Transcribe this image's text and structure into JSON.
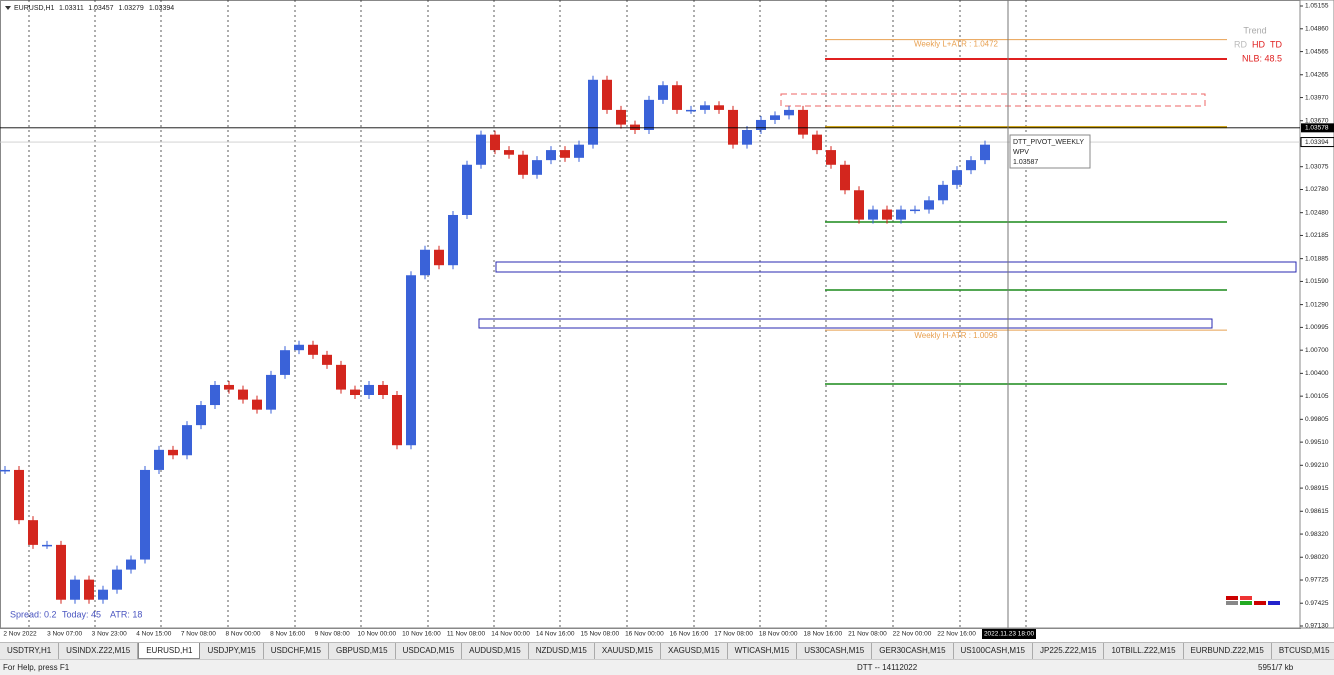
{
  "header": {
    "symbol": "EURUSD,H1",
    "ohlc": [
      1.03311,
      1.03457,
      1.03279,
      1.03394
    ]
  },
  "chart_data": {
    "type": "candlestick",
    "closes": [
      0.9915,
      0.985,
      0.9818,
      0.9818,
      0.9747,
      0.9773,
      0.9747,
      0.976,
      0.9786,
      0.9799,
      0.9915,
      0.9941,
      0.9934,
      0.9973,
      0.9999,
      1.0025,
      1.0019,
      1.0006,
      0.9993,
      1.0038,
      1.007,
      1.0077,
      1.0064,
      1.0051,
      1.0019,
      1.0012,
      1.0025,
      1.0012,
      0.9947,
      1.0167,
      1.02,
      1.018,
      1.0245,
      1.031,
      1.0349,
      1.0329,
      1.0323,
      1.0297,
      1.0316,
      1.0329,
      1.0319,
      1.0336,
      1.042,
      1.0381,
      1.0362,
      1.0355,
      1.0394,
      1.0413,
      1.0381,
      1.0381,
      1.0387,
      1.0381,
      1.0336,
      1.0355,
      1.0368,
      1.0374,
      1.0381,
      1.0349,
      1.0329,
      1.031,
      1.0277,
      1.0239,
      1.0252,
      1.0239,
      1.0252,
      1.0252,
      1.0264,
      1.0284,
      1.0303,
      1.0316,
      1.0336
    ],
    "up_color": "#3a62d8",
    "down_color": "#d3261e",
    "ylim": [
      0.9713,
      1.05155
    ],
    "yticks": [
      1.05155,
      {
        "value": 1.0486,
        "label": "1.04860"
      },
      1.04565,
      1.04265,
      {
        "value": 1.0397,
        "label": "1.03970"
      },
      {
        "value": 1.0367,
        "label": "1.03670"
      },
      1.03075,
      {
        "value": 1.0278,
        "label": "1.02780"
      },
      {
        "value": 1.0248,
        "label": "1.02480"
      },
      1.02185,
      1.01885,
      {
        "value": 1.0159,
        "label": "1.01590"
      },
      {
        "value": 1.0129,
        "label": "1.01290"
      },
      1.00995,
      {
        "value": 1.007,
        "label": "1.00700"
      },
      {
        "value": 1.004,
        "label": "1.00400"
      },
      1.00105,
      0.99805,
      {
        "value": 0.9951,
        "label": "0.99510"
      },
      {
        "value": 0.9921,
        "label": "0.99210"
      },
      0.98915,
      0.98615,
      {
        "value": 0.9832,
        "label": "0.98320"
      },
      {
        "value": 0.9802,
        "label": "0.98020"
      },
      0.97725,
      0.97425,
      {
        "value": 0.9713,
        "label": "0.97130"
      }
    ],
    "categories": [
      "2 Nov 2022",
      "3 Nov 07:00",
      "3 Nov 23:00",
      "4 Nov 15:00",
      "7 Nov 08:00",
      "8 Nov 00:00",
      "8 Nov 16:00",
      "9 Nov 08:00",
      "10 Nov 00:00",
      "10 Nov 16:00",
      "11 Nov 08:00",
      "14 Nov 00:00",
      "14 Nov 16:00",
      "15 Nov 08:00",
      "16 Nov 00:00",
      "16 Nov 16:00",
      "17 Nov 08:00",
      "18 Nov 00:00",
      "18 Nov 16:00",
      "21 Nov 08:00",
      "22 Nov 00:00",
      "22 Nov 16:00"
    ],
    "levels": [
      {
        "label": "Weekly L+ATR : 1.0472",
        "value": 1.0472,
        "color": "#e8a050"
      },
      {
        "label": "Weekly H-ATR : 1.0096",
        "value": 1.0096,
        "color": "#e8a050"
      }
    ],
    "pivot": {
      "name": "DTT_PIVOT_WEEKLY",
      "short": "WPV",
      "value": 1.03587,
      "color": "#c89a00"
    },
    "crosshair": {
      "price": 1.03578,
      "time": "2022.11.23 18:00"
    },
    "bid": 1.03394
  },
  "trend": {
    "title": "Trend",
    "items": [
      "RD",
      "HD",
      "TD"
    ],
    "nlb": "NLB: 48.5"
  },
  "info": [
    "Spread: 0.2",
    "Today: 45",
    "ATR: 18"
  ],
  "tabs": [
    "USDTRY,H1",
    "USINDX.Z22,M15",
    "EURUSD,H1",
    "USDJPY,M15",
    "USDCHF,M15",
    "GBPUSD,M15",
    "USDCAD,M15",
    "AUDUSD,M15",
    "NZDUSD,M15",
    "XAUUSD,M15",
    "XAGUSD,M15",
    "WTICASH,M15",
    "US30CASH,M15",
    "GER30CASH,M15",
    "US100CASH,M15",
    "JP225.Z22,M15",
    "10TBILL.Z22,M15",
    "EURBUND.Z22,M15",
    "BTCUSD,M15"
  ],
  "active_tab": 2,
  "status": {
    "help": "For Help, press F1",
    "profile": "DTT -- 14112022",
    "traffic": "5951/7 kb"
  }
}
